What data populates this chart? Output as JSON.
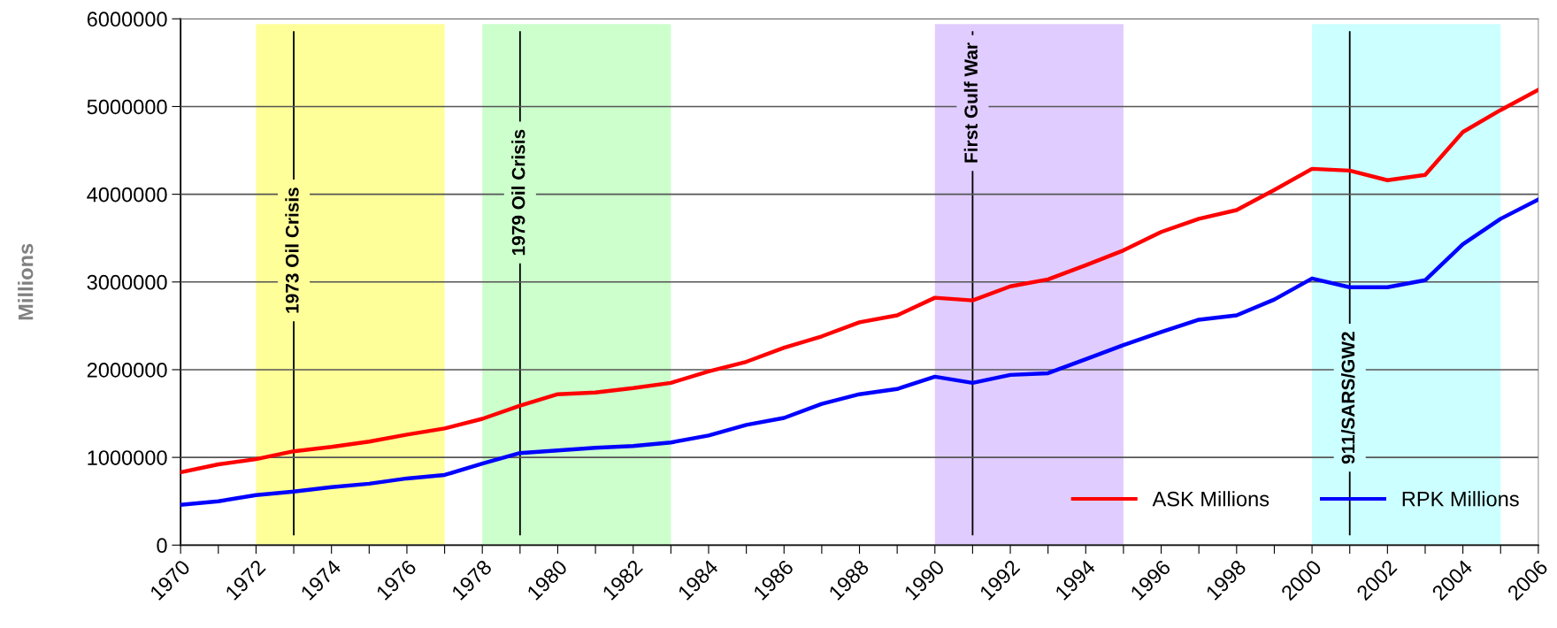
{
  "chart_data": {
    "type": "line",
    "ylabel": "Millions",
    "x": [
      1970,
      1971,
      1972,
      1973,
      1974,
      1975,
      1976,
      1977,
      1978,
      1979,
      1980,
      1981,
      1982,
      1983,
      1984,
      1985,
      1986,
      1987,
      1988,
      1989,
      1990,
      1991,
      1992,
      1993,
      1994,
      1995,
      1996,
      1997,
      1998,
      1999,
      2000,
      2001,
      2002,
      2003,
      2004,
      2005,
      2006
    ],
    "series": [
      {
        "name": "ASK Millions",
        "color": "#ff0000",
        "values": [
          830000,
          920000,
          980000,
          1070000,
          1120000,
          1180000,
          1260000,
          1330000,
          1440000,
          1590000,
          1720000,
          1740000,
          1790000,
          1850000,
          1980000,
          2090000,
          2250000,
          2380000,
          2540000,
          2620000,
          2820000,
          2790000,
          2950000,
          3030000,
          3190000,
          3360000,
          3570000,
          3720000,
          3820000,
          4050000,
          4290000,
          4270000,
          4160000,
          4220000,
          4710000,
          4960000,
          5190000
        ]
      },
      {
        "name": "RPK Millions",
        "color": "#0000ff",
        "values": [
          460000,
          500000,
          570000,
          610000,
          660000,
          700000,
          760000,
          800000,
          930000,
          1050000,
          1080000,
          1110000,
          1130000,
          1170000,
          1250000,
          1370000,
          1450000,
          1610000,
          1720000,
          1780000,
          1920000,
          1850000,
          1940000,
          1960000,
          2120000,
          2280000,
          2430000,
          2570000,
          2620000,
          2800000,
          3040000,
          2940000,
          2940000,
          3020000,
          3430000,
          3720000,
          3940000
        ]
      }
    ],
    "xlim": [
      1970,
      2006
    ],
    "xticks": [
      1970,
      {
        "value": 1971,
        "label": null
      },
      1972,
      {
        "value": 1973,
        "label": null
      },
      1974,
      {
        "value": 1975,
        "label": null
      },
      1976,
      {
        "value": 1977,
        "label": null
      },
      1978,
      {
        "value": 1979,
        "label": null
      },
      1980,
      {
        "value": 1981,
        "label": null
      },
      1982,
      {
        "value": 1983,
        "label": null
      },
      1984,
      {
        "value": 1985,
        "label": null
      },
      1986,
      {
        "value": 1987,
        "label": null
      },
      1988,
      {
        "value": 1989,
        "label": null
      },
      1990,
      {
        "value": 1991,
        "label": null
      },
      1992,
      {
        "value": 1993,
        "label": null
      },
      1994,
      {
        "value": 1995,
        "label": null
      },
      1996,
      {
        "value": 1997,
        "label": null
      },
      1998,
      {
        "value": 1999,
        "label": null
      },
      2000,
      {
        "value": 2001,
        "label": null
      },
      2002,
      {
        "value": 2003,
        "label": null
      },
      2004,
      {
        "value": 2005,
        "label": null
      },
      2006
    ],
    "ylim": [
      0,
      6000000
    ],
    "yticks": [
      0,
      1000000,
      2000000,
      3000000,
      4000000,
      5000000,
      6000000
    ],
    "grid": "y",
    "legend": "bottom right",
    "marker": "none",
    "line_style": "solid",
    "bands": [
      {
        "axis": "x",
        "from": 1972,
        "to": 1977,
        "color": "#ffff99"
      },
      {
        "axis": "x",
        "from": 1978,
        "to": 1983,
        "color": "#ccffcc"
      },
      {
        "axis": "x",
        "from": 1990,
        "to": 1995,
        "color": "#e0ccff"
      },
      {
        "axis": "x",
        "from": 2000,
        "to": 2005,
        "color": "#ccffff"
      }
    ],
    "ref_lines": [
      {
        "axis": "x",
        "value": 1973,
        "label": "1973 Oil Crisis",
        "color": "#000000"
      },
      {
        "axis": "x",
        "value": 1979,
        "label": "1979 Oil Crisis",
        "color": "#000000"
      },
      {
        "axis": "x",
        "value": 1991,
        "label": "First Gulf War",
        "color": "#000000"
      },
      {
        "axis": "x",
        "value": 2001,
        "label": "911/SARS/GW2",
        "color": "#000000"
      }
    ]
  }
}
